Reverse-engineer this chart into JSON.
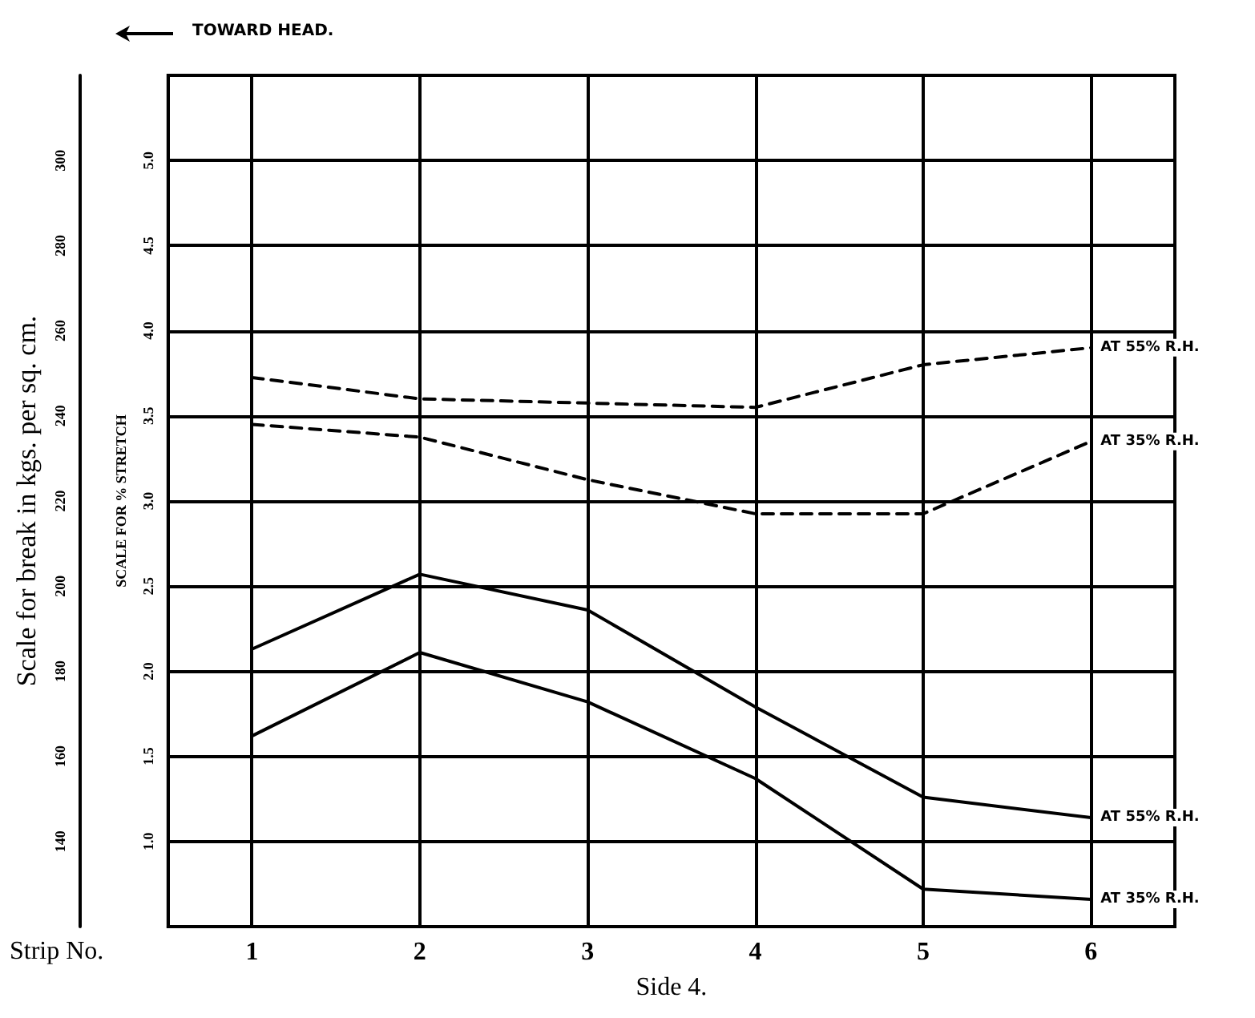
{
  "chart_data": {
    "type": "line",
    "xlabel": "Side 4.",
    "ylabel": "Scale for break in kgs. per sq. cm.",
    "y2label": "SCALE FOR % STRETCH",
    "annotations": [
      "TOWARD HEAD.",
      "Strip No."
    ],
    "x": [
      1,
      2,
      3,
      4,
      5,
      6
    ],
    "xlim": [
      0.5,
      6.5
    ],
    "xticks": [
      1,
      2,
      3,
      4,
      5,
      6
    ],
    "ylim": [
      120,
      320
    ],
    "yticks": [
      140,
      160,
      180,
      200,
      220,
      240,
      260,
      280,
      300
    ],
    "y2lim": [
      0.5,
      5.5
    ],
    "y2ticks": [
      {
        "value": 1,
        "label": "1.0"
      },
      {
        "value": 1.5,
        "label": "1.5"
      },
      {
        "value": 2,
        "label": "2.0"
      },
      {
        "value": 2.5,
        "label": "2.5"
      },
      {
        "value": 3,
        "label": "3.0"
      },
      {
        "value": 3.5,
        "label": "3.5"
      },
      {
        "value": 4,
        "label": "4.0"
      },
      {
        "value": 4.5,
        "label": "4.5"
      },
      {
        "value": 5,
        "label": "5.0"
      }
    ],
    "grid": true,
    "legend": false,
    "marker": "none",
    "series": [
      {
        "name": "AT 55% R.H.",
        "color": "#000000",
        "line_style": "dashed",
        "values": [
          249,
          244,
          243,
          242,
          252,
          256
        ]
      },
      {
        "name": "AT 35% R.H.",
        "color": "#000000",
        "line_style": "dashed",
        "values": [
          238,
          235,
          225,
          217,
          217,
          234
        ]
      },
      {
        "name": "AT 55% R.H.",
        "color": "#000000",
        "line_style": "solid",
        "axis": "y2",
        "values": [
          2.13,
          2.57,
          2.36,
          1.79,
          1.26,
          1.14
        ]
      },
      {
        "name": "AT 35% R.H.",
        "color": "#000000",
        "line_style": "solid",
        "axis": "y2",
        "values": [
          1.62,
          2.11,
          1.82,
          1.37,
          0.72,
          0.66
        ]
      }
    ]
  }
}
